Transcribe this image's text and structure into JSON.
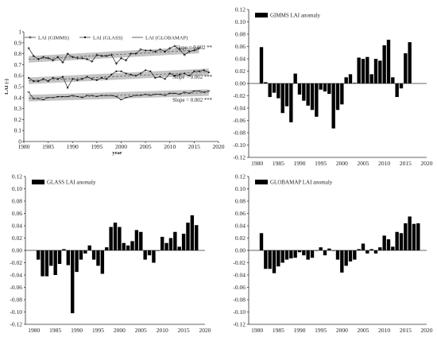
{
  "chart_data": [
    {
      "type": "line",
      "ylabel": "LAI (-)",
      "xlabel": "year",
      "xlim": [
        1980,
        2020
      ],
      "ylim": [
        0,
        1
      ],
      "xticks": [
        1980,
        1985,
        1990,
        1995,
        2000,
        2005,
        2010,
        2015,
        2020
      ],
      "yticks": [
        0,
        0.1,
        0.2,
        0.3,
        0.4,
        0.5,
        0.6,
        0.7,
        0.8,
        0.9,
        1
      ],
      "legend_position": "top",
      "series": [
        {
          "name": "LAI (GIMMS)",
          "marker": "plus",
          "x": [
            1981,
            1982,
            1983,
            1984,
            1985,
            1986,
            1987,
            1988,
            1989,
            1990,
            1991,
            1992,
            1993,
            1994,
            1995,
            1996,
            1997,
            1998,
            1999,
            2000,
            2001,
            2002,
            2003,
            2004,
            2005,
            2006,
            2007,
            2008,
            2009,
            2010,
            2011,
            2012,
            2013,
            2014,
            2015,
            2016
          ],
          "values": [
            0.85,
            0.78,
            0.75,
            0.77,
            0.76,
            0.74,
            0.77,
            0.72,
            0.8,
            0.77,
            0.76,
            0.76,
            0.75,
            0.73,
            0.79,
            0.78,
            0.78,
            0.79,
            0.71,
            0.76,
            0.74,
            0.8,
            0.8,
            0.84,
            0.83,
            0.83,
            0.82,
            0.84,
            0.82,
            0.85,
            0.87,
            0.84,
            0.79,
            0.82,
            0.83,
            0.85
          ],
          "slope_label": "Slope = 0.002 **"
        },
        {
          "name": "LAI (GLASS)",
          "marker": "dot",
          "x": [
            1981,
            1982,
            1983,
            1984,
            1985,
            1986,
            1987,
            1988,
            1989,
            1990,
            1991,
            1992,
            1993,
            1994,
            1995,
            1996,
            1997,
            1998,
            1999,
            2000,
            2001,
            2002,
            2003,
            2004,
            2005,
            2006,
            2007,
            2008,
            2009,
            2010,
            2011,
            2012,
            2013,
            2014,
            2015,
            2016,
            2017,
            2018
          ],
          "values": [
            0.58,
            0.55,
            0.55,
            0.57,
            0.55,
            0.58,
            0.57,
            0.59,
            0.49,
            0.57,
            0.56,
            0.57,
            0.59,
            0.57,
            0.56,
            0.58,
            0.57,
            0.61,
            0.64,
            0.64,
            0.62,
            0.61,
            0.6,
            0.62,
            0.65,
            0.64,
            0.58,
            0.59,
            0.57,
            0.62,
            0.6,
            0.61,
            0.62,
            0.6,
            0.64,
            0.64,
            0.65,
            0.63
          ],
          "slope_label": "Slope = 0.002 ***"
        },
        {
          "name": "LAI (GLOBAMAP)",
          "marker": "dash",
          "x": [
            1981,
            1982,
            1983,
            1984,
            1985,
            1986,
            1987,
            1988,
            1989,
            1990,
            1991,
            1992,
            1993,
            1994,
            1995,
            1996,
            1997,
            1998,
            1999,
            2000,
            2001,
            2002,
            2003,
            2004,
            2005,
            2006,
            2007,
            2008,
            2009,
            2010,
            2011,
            2012,
            2013,
            2014,
            2015,
            2016,
            2017,
            2018
          ],
          "values": [
            0.45,
            0.39,
            0.39,
            0.38,
            0.4,
            0.4,
            0.41,
            0.41,
            0.41,
            0.42,
            0.41,
            0.4,
            0.42,
            0.42,
            0.41,
            0.42,
            0.42,
            0.42,
            0.41,
            0.38,
            0.4,
            0.41,
            0.42,
            0.42,
            0.43,
            0.42,
            0.43,
            0.43,
            0.42,
            0.44,
            0.44,
            0.43,
            0.45,
            0.44,
            0.46,
            0.46,
            0.45,
            0.46
          ],
          "slope_label": "Slope = 0.002 ***"
        }
      ]
    },
    {
      "type": "bar",
      "legend": "GIMMS LAI anomaly",
      "legend_position": "top-left",
      "xlim": [
        1978,
        2020
      ],
      "ylim": [
        -0.12,
        0.12
      ],
      "xticks": [
        1980,
        1985,
        1990,
        1995,
        2000,
        2005,
        2010,
        2015,
        2020
      ],
      "yticks": [
        -0.12,
        -0.1,
        -0.08,
        -0.06,
        -0.04,
        -0.02,
        0.0,
        0.02,
        0.04,
        0.06,
        0.08,
        0.1,
        0.12
      ],
      "x": [
        1981,
        1982,
        1983,
        1984,
        1985,
        1986,
        1987,
        1988,
        1989,
        1990,
        1991,
        1992,
        1993,
        1994,
        1995,
        1996,
        1997,
        1998,
        1999,
        2000,
        2001,
        2002,
        2003,
        2004,
        2005,
        2006,
        2007,
        2008,
        2009,
        2010,
        2011,
        2012,
        2013,
        2014,
        2015,
        2016
      ],
      "values": [
        0.059,
        0.002,
        -0.022,
        -0.015,
        -0.024,
        -0.048,
        -0.037,
        -0.063,
        0.016,
        -0.018,
        -0.028,
        -0.036,
        -0.043,
        -0.054,
        -0.01,
        -0.013,
        -0.017,
        -0.073,
        -0.043,
        -0.034,
        0.01,
        0.015,
        0.001,
        0.042,
        0.04,
        0.043,
        0.015,
        0.04,
        0.037,
        0.062,
        0.071,
        0.01,
        -0.022,
        -0.008,
        0.049,
        0.067
      ]
    },
    {
      "type": "bar",
      "legend": "GLASS LAI anomaly",
      "legend_position": "top-left",
      "xlim": [
        1978,
        2020
      ],
      "ylim": [
        -0.12,
        0.12
      ],
      "xticks": [
        1980,
        1985,
        1990,
        1995,
        2000,
        2005,
        2010,
        2015,
        2020
      ],
      "yticks": [
        -0.12,
        -0.1,
        -0.08,
        -0.06,
        -0.04,
        -0.02,
        0.0,
        0.02,
        0.04,
        0.06,
        0.08,
        0.1,
        0.12
      ],
      "x": [
        1981,
        1982,
        1983,
        1984,
        1985,
        1986,
        1987,
        1988,
        1989,
        1990,
        1991,
        1992,
        1993,
        1994,
        1995,
        1996,
        1997,
        1998,
        1999,
        2000,
        2001,
        2002,
        2003,
        2004,
        2005,
        2006,
        2007,
        2008,
        2009,
        2010,
        2011,
        2012,
        2013,
        2014,
        2015,
        2016,
        2017,
        2018
      ],
      "values": [
        -0.015,
        -0.042,
        -0.042,
        -0.025,
        -0.04,
        -0.022,
        0.002,
        -0.024,
        -0.102,
        -0.035,
        -0.015,
        -0.005,
        0.008,
        -0.015,
        -0.025,
        -0.038,
        0.005,
        0.038,
        0.045,
        0.038,
        0.012,
        0.008,
        0.015,
        0.033,
        0.03,
        -0.015,
        -0.008,
        -0.02,
        0.0,
        0.022,
        0.012,
        0.02,
        0.03,
        0.006,
        0.027,
        0.045,
        0.057,
        0.041
      ]
    },
    {
      "type": "bar",
      "legend": "GLOBAMAP LAI anomaly",
      "legend_position": "top-left",
      "xlim": [
        1978,
        2020
      ],
      "ylim": [
        -0.12,
        0.12
      ],
      "xticks": [
        1980,
        1985,
        1990,
        1995,
        2000,
        2005,
        2010,
        2015,
        2020
      ],
      "yticks": [
        -0.12,
        -0.1,
        -0.08,
        -0.06,
        -0.04,
        -0.02,
        0.0,
        0.02,
        0.04,
        0.06,
        0.08,
        0.1,
        0.12
      ],
      "x": [
        1981,
        1982,
        1983,
        1984,
        1985,
        1986,
        1987,
        1988,
        1989,
        1990,
        1991,
        1992,
        1993,
        1994,
        1995,
        1996,
        1997,
        1998,
        1999,
        2000,
        2001,
        2002,
        2003,
        2004,
        2005,
        2006,
        2007,
        2008,
        2009,
        2010,
        2011,
        2012,
        2013,
        2014,
        2015,
        2016,
        2017,
        2018
      ],
      "values": [
        0.028,
        -0.03,
        -0.03,
        -0.037,
        -0.026,
        -0.02,
        -0.015,
        -0.013,
        -0.012,
        -0.003,
        -0.008,
        -0.015,
        -0.012,
        0.0,
        0.005,
        -0.008,
        0.003,
        0.0,
        -0.015,
        -0.036,
        -0.025,
        -0.018,
        -0.015,
        0.002,
        0.011,
        -0.005,
        0.002,
        -0.005,
        0.005,
        0.024,
        0.018,
        0.006,
        0.03,
        0.028,
        0.044,
        0.055,
        0.043,
        0.044
      ]
    }
  ]
}
